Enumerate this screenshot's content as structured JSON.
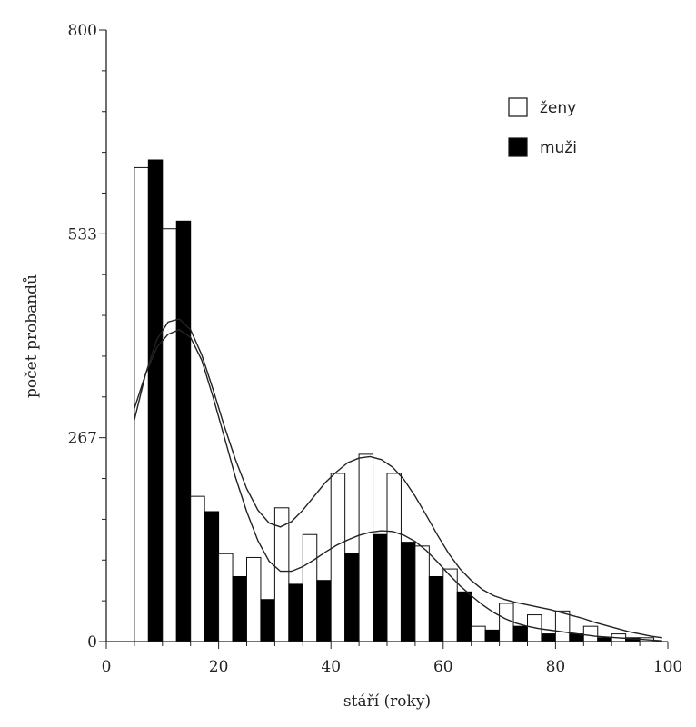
{
  "chart_data": {
    "type": "bar",
    "xlabel": "stáří (roky)",
    "ylabel": "počet probandů",
    "xlim": [
      0,
      100
    ],
    "ylim": [
      0,
      800
    ],
    "x_ticks": [
      "0",
      "20",
      "40",
      "60",
      "80",
      "100"
    ],
    "x_tick_values": [
      0,
      20,
      40,
      60,
      80,
      100
    ],
    "y_ticks": [
      "0",
      "267",
      "533",
      "800"
    ],
    "y_tick_values": [
      0,
      267,
      533,
      800
    ],
    "legend_position": "top-right",
    "bin_width": 5,
    "bin_starts": [
      5,
      10,
      15,
      20,
      25,
      30,
      35,
      40,
      45,
      50,
      55,
      60,
      65,
      70,
      75,
      80,
      85,
      90,
      95
    ],
    "series": [
      {
        "name": "ženy",
        "fill": "#ffffff",
        "stroke": "#111111",
        "values": [
          620,
          540,
          190,
          115,
          110,
          175,
          140,
          220,
          245,
          220,
          125,
          95,
          20,
          50,
          35,
          40,
          20,
          10,
          5
        ]
      },
      {
        "name": "muži",
        "fill": "#000000",
        "stroke": "#000000",
        "values": [
          630,
          550,
          170,
          85,
          55,
          75,
          80,
          115,
          140,
          130,
          85,
          65,
          15,
          20,
          10,
          10,
          5,
          5,
          0
        ]
      }
    ],
    "fitted_curves": [
      {
        "x": [
          5,
          7,
          9,
          11,
          13,
          15,
          17,
          19,
          21,
          23,
          25,
          27,
          29,
          31,
          33,
          35,
          37,
          39,
          41,
          43,
          45,
          47,
          49,
          51,
          53,
          55,
          57,
          59,
          61,
          63,
          65,
          67,
          69,
          71,
          73,
          75,
          77,
          79,
          81,
          83,
          85,
          87,
          89,
          91,
          93,
          95,
          97,
          99
        ],
        "y": [
          290,
          350,
          395,
          418,
          422,
          408,
          375,
          330,
          282,
          238,
          200,
          172,
          155,
          150,
          157,
          172,
          190,
          208,
          222,
          234,
          240,
          242,
          238,
          228,
          212,
          190,
          165,
          139,
          115,
          95,
          80,
          68,
          60,
          55,
          51,
          48,
          45,
          42,
          38,
          34,
          30,
          25,
          21,
          17,
          13,
          10,
          7,
          5
        ]
      },
      {
        "x": [
          5,
          7,
          9,
          11,
          13,
          15,
          17,
          19,
          21,
          23,
          25,
          27,
          29,
          31,
          33,
          35,
          37,
          39,
          41,
          43,
          45,
          47,
          49,
          51,
          53,
          55,
          57,
          59,
          61,
          63,
          65,
          67,
          69,
          71,
          73,
          75,
          77,
          79,
          81,
          83,
          85,
          87,
          89,
          91,
          93,
          95,
          97,
          99
        ],
        "y": [
          305,
          350,
          385,
          402,
          408,
          398,
          368,
          320,
          268,
          215,
          170,
          132,
          105,
          92,
          92,
          98,
          107,
          117,
          126,
          133,
          139,
          143,
          145,
          144,
          139,
          131,
          119,
          104,
          88,
          73,
          60,
          48,
          38,
          30,
          24,
          20,
          17,
          15,
          13,
          11,
          9,
          7,
          6,
          5,
          4,
          3,
          2,
          1
        ]
      }
    ]
  }
}
